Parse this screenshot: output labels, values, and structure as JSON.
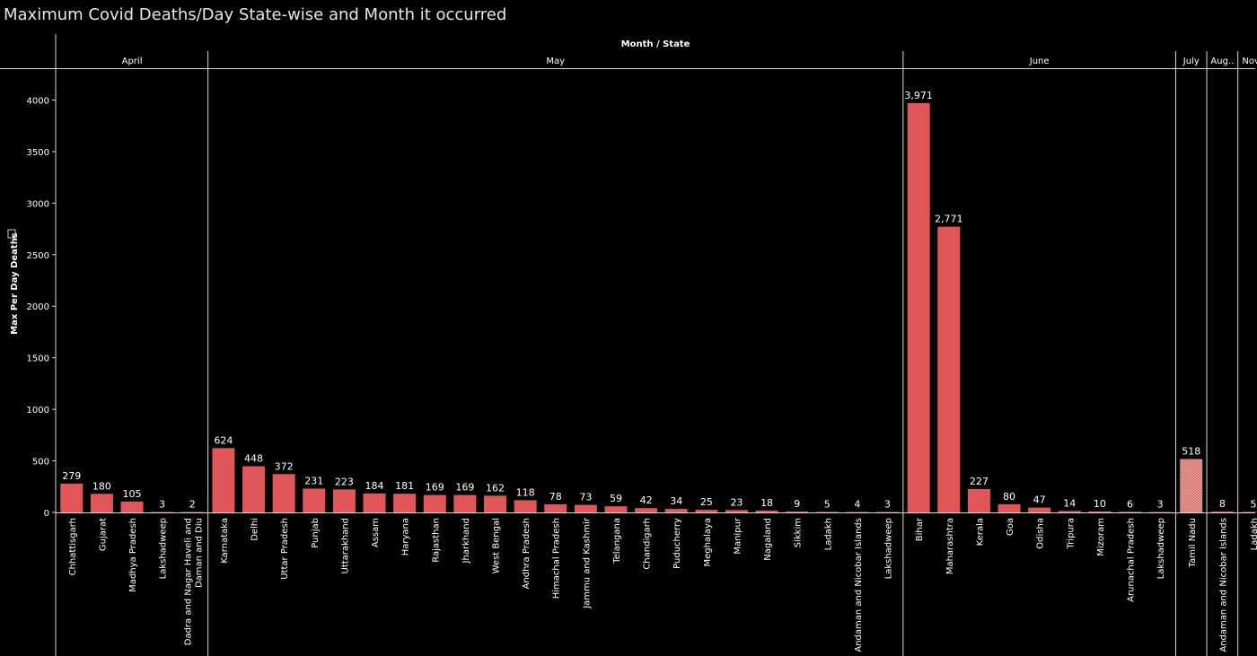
{
  "title": "Maximum Covid Deaths/Day State-wise and Month it occurred",
  "colors": {
    "bar": "#e15759",
    "bar_highlight": "#f0a8a0",
    "background": "#000000",
    "grid": "#d9d9d9",
    "text": "#ffffff"
  },
  "chart_data": {
    "type": "bar",
    "title": "Maximum Covid Deaths/Day State-wise and Month it occurred",
    "column_header": "Month / State",
    "ylabel": "Max Per Day Deaths",
    "ylim": [
      0,
      4300
    ],
    "yticks": [
      0,
      500,
      1000,
      1500,
      2000,
      2500,
      3000,
      3500,
      4000
    ],
    "grid": false,
    "groups": [
      {
        "month": "April",
        "states": [
          {
            "state": "Chhattisgarh",
            "value": 279,
            "label": "279"
          },
          {
            "state": "Gujarat",
            "value": 180,
            "label": "180"
          },
          {
            "state": "Madhya Pradesh",
            "value": 105,
            "label": "105"
          },
          {
            "state": "Lakshadweep",
            "value": 3,
            "label": "3"
          },
          {
            "state": "Dadra and Nagar Haveli and Daman and Diu",
            "state_lines": [
              "Dadra and Nagar Haveli and",
              "Daman and Diu"
            ],
            "value": 2,
            "label": "2"
          }
        ]
      },
      {
        "month": "May",
        "states": [
          {
            "state": "Karnataka",
            "value": 624,
            "label": "624"
          },
          {
            "state": "Delhi",
            "value": 448,
            "label": "448"
          },
          {
            "state": "Uttar Pradesh",
            "value": 372,
            "label": "372"
          },
          {
            "state": "Punjab",
            "value": 231,
            "label": "231"
          },
          {
            "state": "Uttarakhand",
            "value": 223,
            "label": "223"
          },
          {
            "state": "Assam",
            "value": 184,
            "label": "184"
          },
          {
            "state": "Haryana",
            "value": 181,
            "label": "181"
          },
          {
            "state": "Rajasthan",
            "value": 169,
            "label": "169"
          },
          {
            "state": "Jharkhand",
            "value": 169,
            "label": "169"
          },
          {
            "state": "West Bengal",
            "value": 162,
            "label": "162"
          },
          {
            "state": "Andhra Pradesh",
            "value": 118,
            "label": "118"
          },
          {
            "state": "Himachal Pradesh",
            "value": 78,
            "label": "78"
          },
          {
            "state": "Jammu and Kashmir",
            "value": 73,
            "label": "73"
          },
          {
            "state": "Telangana",
            "value": 59,
            "label": "59"
          },
          {
            "state": "Chandigarh",
            "value": 42,
            "label": "42"
          },
          {
            "state": "Puducherry",
            "value": 34,
            "label": "34"
          },
          {
            "state": "Meghalaya",
            "value": 25,
            "label": "25"
          },
          {
            "state": "Manipur",
            "value": 23,
            "label": "23"
          },
          {
            "state": "Nagaland",
            "value": 18,
            "label": "18"
          },
          {
            "state": "Sikkim",
            "value": 9,
            "label": "9"
          },
          {
            "state": "Ladakh",
            "value": 5,
            "label": "5"
          },
          {
            "state": "Andaman and Nicobar Islands",
            "value": 4,
            "label": "4"
          },
          {
            "state": "Lakshadweep",
            "value": 3,
            "label": "3"
          }
        ]
      },
      {
        "month": "June",
        "states": [
          {
            "state": "Bihar",
            "value": 3971,
            "label": "3,971"
          },
          {
            "state": "Maharashtra",
            "value": 2771,
            "label": "2,771"
          },
          {
            "state": "Kerala",
            "value": 227,
            "label": "227"
          },
          {
            "state": "Goa",
            "value": 80,
            "label": "80"
          },
          {
            "state": "Odisha",
            "value": 47,
            "label": "47"
          },
          {
            "state": "Tripura",
            "value": 14,
            "label": "14"
          },
          {
            "state": "Mizoram",
            "value": 10,
            "label": "10"
          },
          {
            "state": "Arunachal Pradesh",
            "value": 6,
            "label": "6"
          },
          {
            "state": "Lakshadweep",
            "value": 3,
            "label": "3"
          }
        ]
      },
      {
        "month": "July",
        "states": [
          {
            "state": "Tamil Nadu",
            "value": 518,
            "label": "518",
            "highlight": true
          }
        ]
      },
      {
        "month": "Aug..",
        "states": [
          {
            "state": "Andaman and Nicobar Islands",
            "value": 8,
            "label": "8"
          }
        ]
      },
      {
        "month": "Nov..",
        "states": [
          {
            "state": "Ladakh",
            "value": 5,
            "label": "5"
          }
        ]
      }
    ]
  }
}
